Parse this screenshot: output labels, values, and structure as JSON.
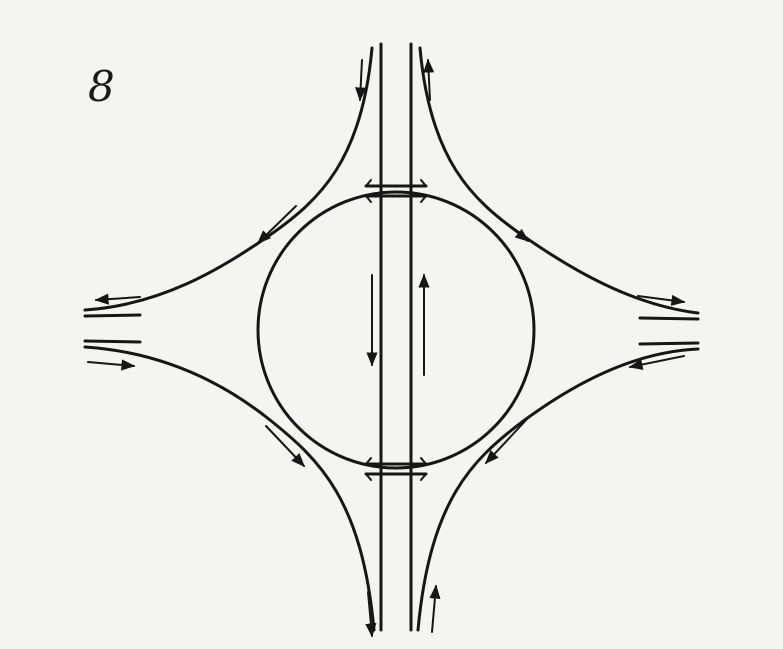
{
  "figure": {
    "label": "8"
  },
  "colors": {
    "background": "#f4f4f2",
    "ink": "#161616"
  }
}
